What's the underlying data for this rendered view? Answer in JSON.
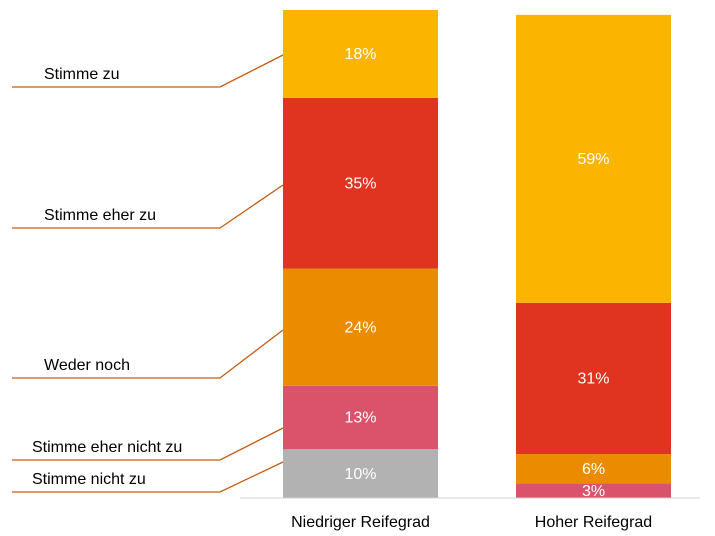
{
  "chart_data": {
    "type": "stacked_bar",
    "categories": [
      "Niedriger Reifegrad",
      "Hoher Reifegrad"
    ],
    "ylim": [
      0,
      100
    ],
    "series": [
      {
        "name": "Stimme nicht zu",
        "color": "#b2b2b2",
        "values": [
          10,
          0
        ],
        "value_labels": [
          "10%",
          null
        ]
      },
      {
        "name": "Stimme eher nicht zu",
        "color": "#db536a",
        "values": [
          13,
          3
        ],
        "value_labels": [
          "13%",
          "3%"
        ]
      },
      {
        "name": "Weder noch",
        "color": "#eb8c00",
        "values": [
          24,
          6
        ],
        "value_labels": [
          "24%",
          "6%"
        ]
      },
      {
        "name": "Stimme eher zu",
        "color": "#e03320",
        "values": [
          35,
          31
        ],
        "value_labels": [
          "35%",
          "31%"
        ]
      },
      {
        "name": "Stimme zu",
        "color": "#fbb500",
        "values": [
          18,
          59
        ],
        "value_labels": [
          "18%",
          "59%"
        ]
      }
    ]
  }
}
